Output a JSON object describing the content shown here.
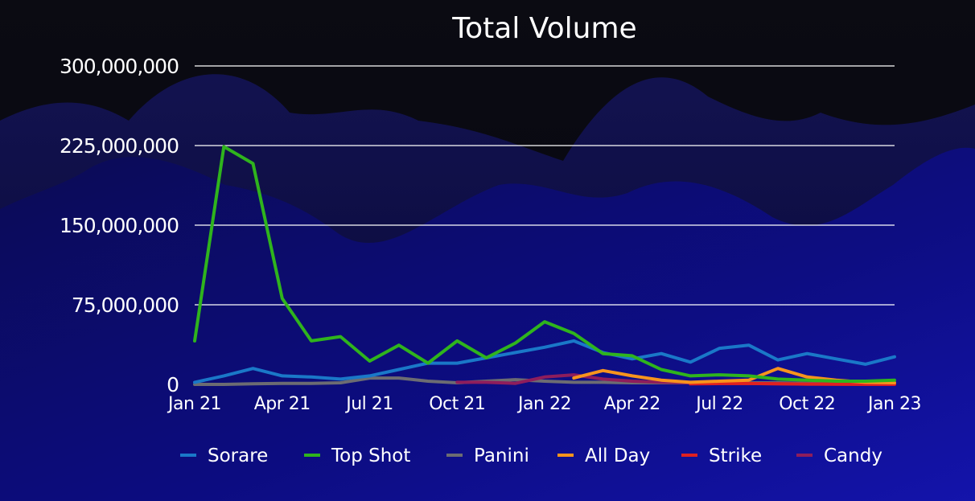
{
  "chart_data": {
    "type": "line",
    "title": "Total Volume",
    "xlabel": "",
    "ylabel": "",
    "ylim": [
      0,
      300000000
    ],
    "yticks": [
      0,
      75000000,
      150000000,
      225000000,
      300000000
    ],
    "ytick_labels": [
      "0",
      "75,000,000",
      "150,000,000",
      "225,000,000",
      "300,000,000"
    ],
    "x": [
      "Jan 21",
      "Feb 21",
      "Mar 21",
      "Apr 21",
      "May 21",
      "Jun 21",
      "Jul 21",
      "Aug 21",
      "Sep 21",
      "Oct 21",
      "Nov 21",
      "Dec 21",
      "Jan 22",
      "Feb 22",
      "Mar 22",
      "Apr 22",
      "May 22",
      "Jun 22",
      "Jul 22",
      "Aug 22",
      "Sep 22",
      "Oct 22",
      "Nov 22",
      "Dec 22",
      "Jan 23"
    ],
    "xtick_labels": [
      "Jan 21",
      "Apr 21",
      "Jul 21",
      "Oct 21",
      "Jan 22",
      "Apr 22",
      "Jul 22",
      "Oct 22",
      "Jan 23"
    ],
    "xtick_index": [
      0,
      3,
      6,
      9,
      12,
      15,
      18,
      21,
      24
    ],
    "grid": "horizontal",
    "legend": "bottom",
    "series": [
      {
        "name": "Sorare",
        "color": "#1a78c8",
        "values": [
          2000000,
          8000000,
          15000000,
          8000000,
          7000000,
          5000000,
          8000000,
          14000000,
          20000000,
          20000000,
          25000000,
          30000000,
          35000000,
          41000000,
          30000000,
          24000000,
          29000000,
          21000000,
          34000000,
          37000000,
          23000000,
          29000000,
          24000000,
          19000000,
          26000000
        ]
      },
      {
        "name": "Top Shot",
        "color": "#2fb41d",
        "values": [
          41000000,
          224000000,
          208000000,
          81000000,
          41000000,
          45000000,
          22000000,
          37000000,
          20000000,
          41000000,
          25000000,
          39000000,
          59000000,
          48000000,
          29000000,
          27000000,
          14000000,
          8000000,
          9000000,
          8000000,
          5000000,
          4000000,
          3000000,
          3000000,
          4000000
        ]
      },
      {
        "name": "Panini",
        "color": "#6c6c72",
        "values": [
          0,
          0,
          500000,
          1000000,
          1000000,
          1500000,
          6000000,
          6000000,
          3000000,
          1500000,
          3000000,
          4500000,
          3000000,
          2000000,
          2000000,
          1500000,
          1500000,
          1500000,
          1500000,
          1500000,
          1500000,
          1000000,
          1000000,
          500000,
          500000
        ]
      },
      {
        "name": "All Day",
        "color": "#f7941d",
        "values": [
          null,
          null,
          null,
          null,
          null,
          null,
          null,
          null,
          null,
          null,
          null,
          null,
          null,
          6000000,
          13000000,
          8000000,
          4000000,
          2000000,
          3000000,
          4000000,
          15000000,
          7000000,
          4000000,
          2000000,
          1500000
        ]
      },
      {
        "name": "Strike",
        "color": "#e02020",
        "values": [
          null,
          null,
          null,
          null,
          null,
          null,
          null,
          null,
          null,
          null,
          null,
          null,
          null,
          null,
          null,
          null,
          null,
          500000,
          800000,
          800000,
          500000,
          300000,
          200000,
          100000,
          100000
        ]
      },
      {
        "name": "Candy",
        "color": "#8e1d5c",
        "values": [
          null,
          null,
          null,
          null,
          null,
          null,
          null,
          null,
          null,
          2000000,
          2000000,
          1000000,
          7000000,
          9000000,
          5000000,
          3000000,
          2000000,
          1500000,
          1000000,
          800000,
          500000,
          300000,
          200000,
          100000,
          100000
        ]
      }
    ]
  }
}
